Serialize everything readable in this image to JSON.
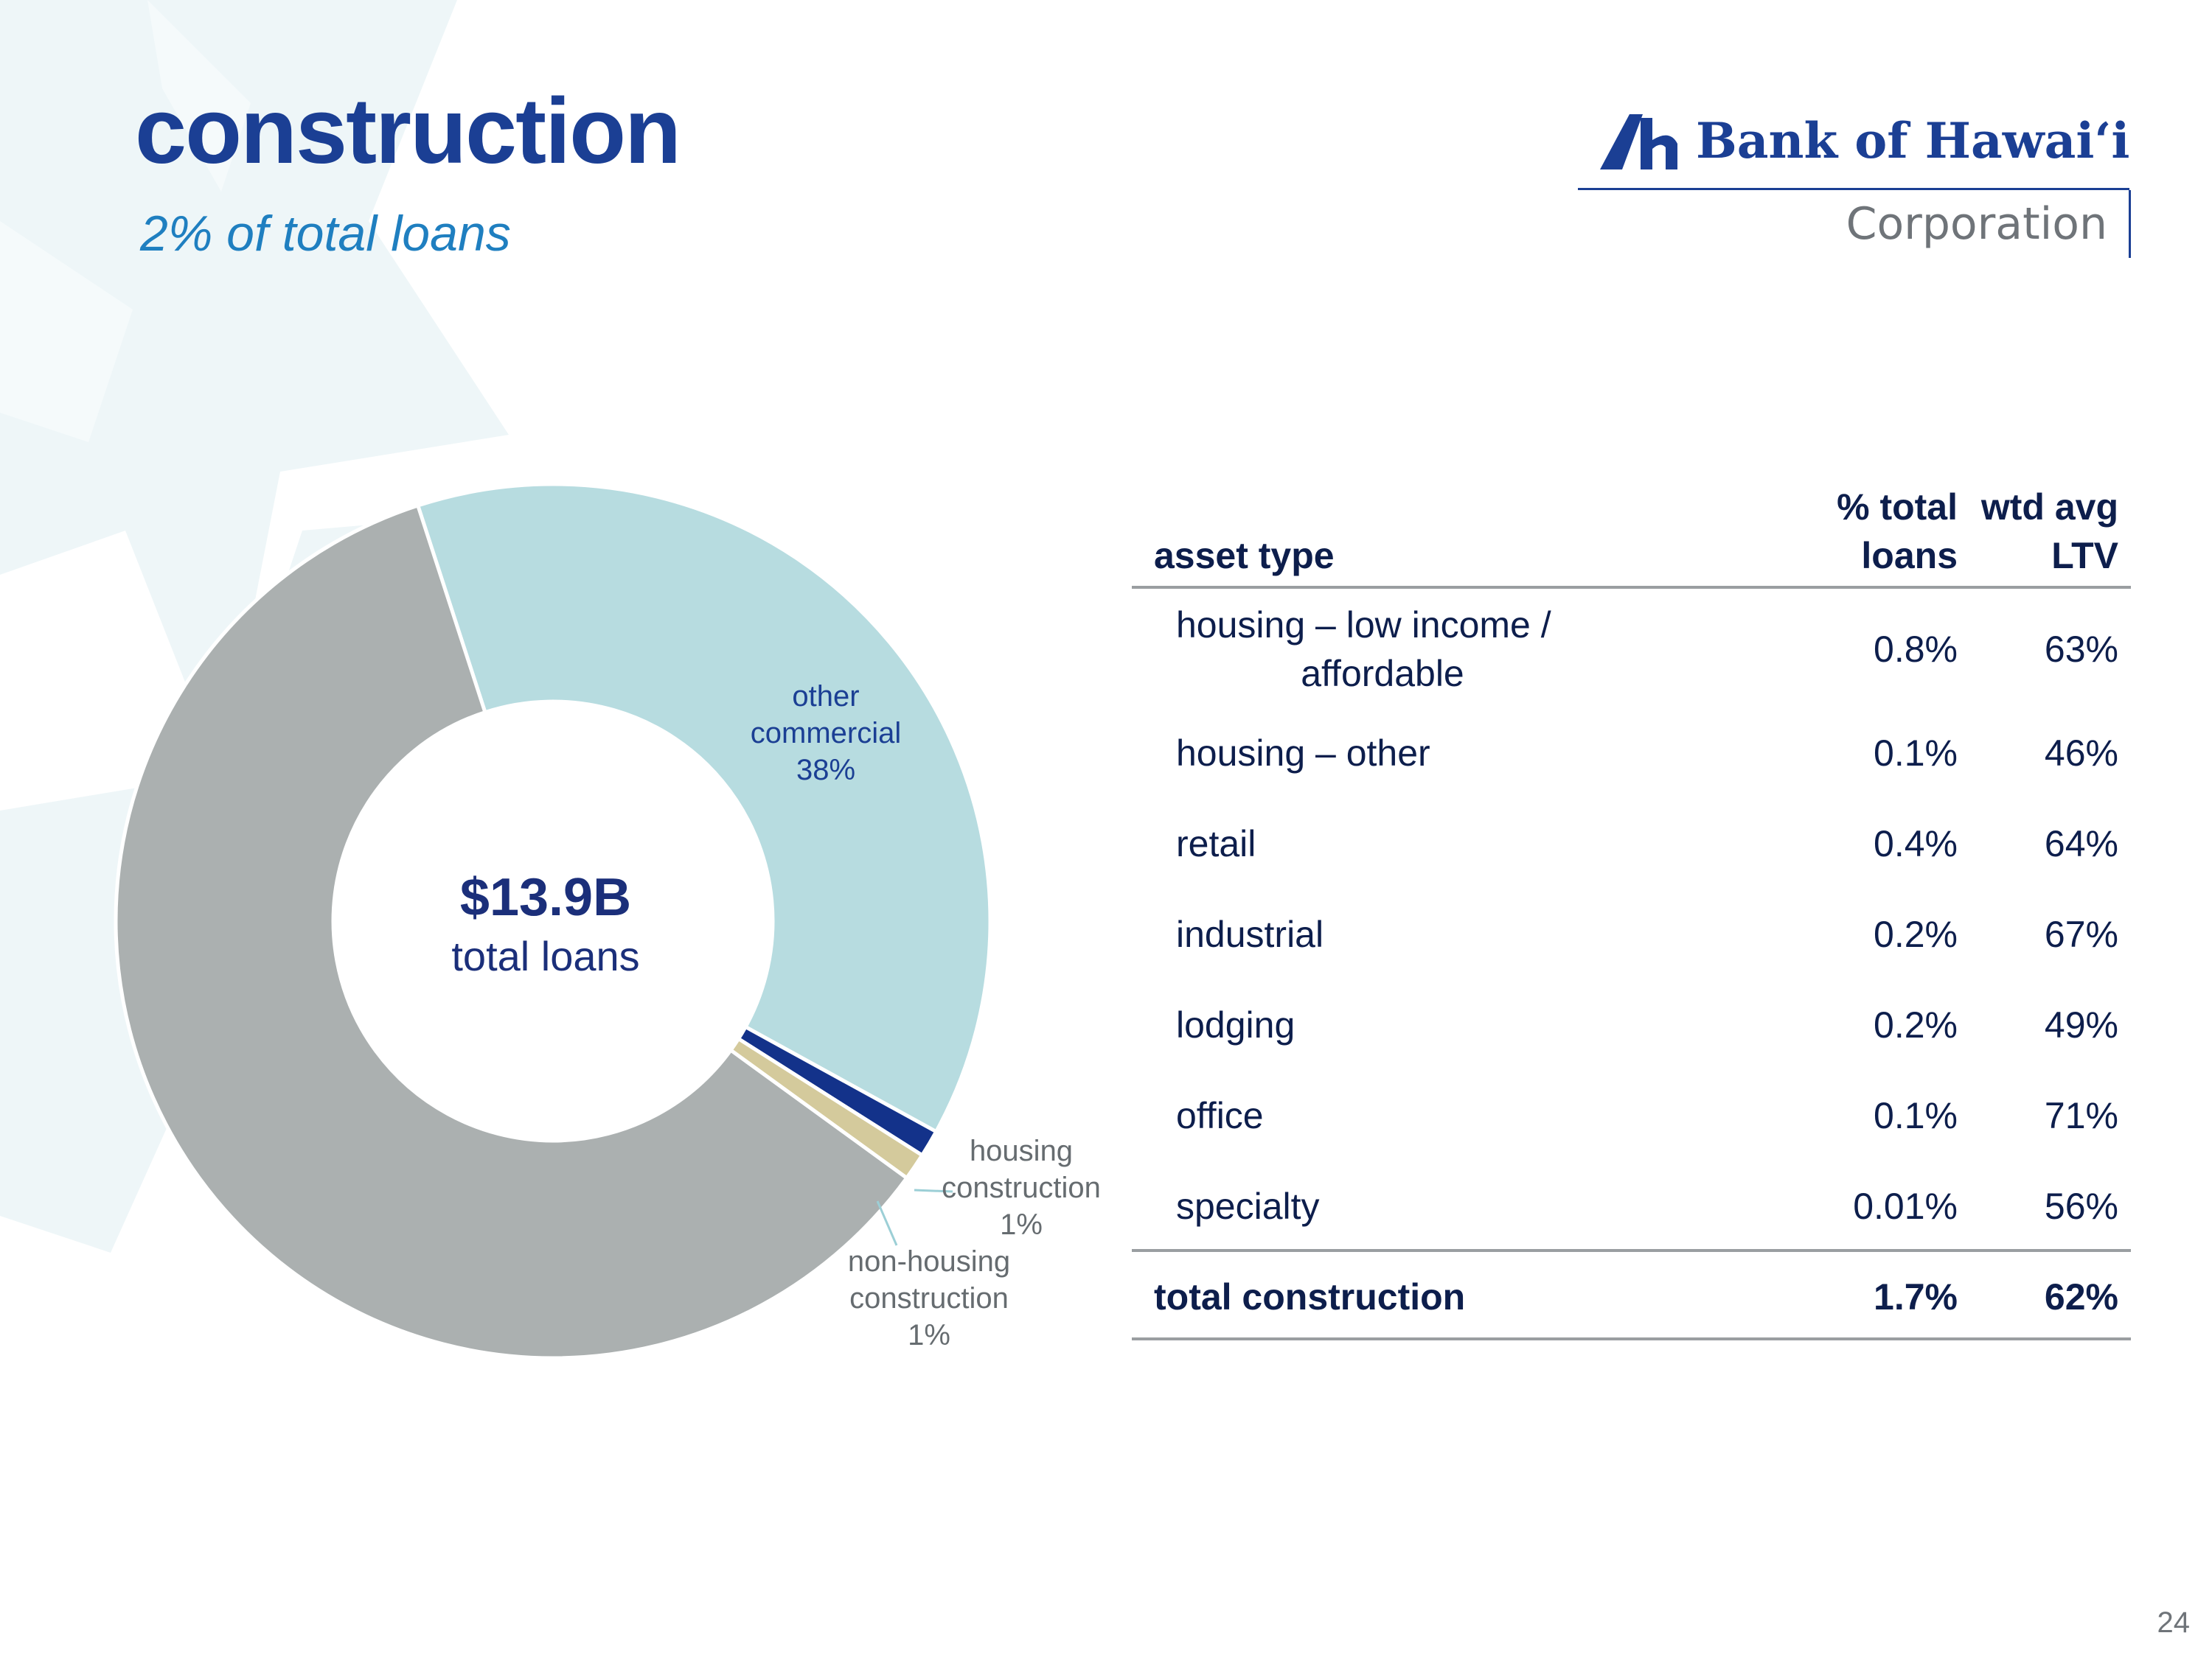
{
  "slide": {
    "title": "construction",
    "subtitle": "2% of total loans",
    "page_number": "24"
  },
  "logo": {
    "name": "Bank of Hawai‘i",
    "sub": "Corporation",
    "colors": {
      "primary": "#1b3f94",
      "secondary": "#6f7479"
    }
  },
  "chart_data": {
    "type": "pie",
    "center_value": "$13.9B",
    "center_caption": "total loans",
    "slices": [
      {
        "label": "other commercial",
        "pct_label": "38%",
        "value": 38,
        "color": "#b7dce0"
      },
      {
        "label": "housing construction",
        "pct_label": "1%",
        "value": 1,
        "color": "#13328a"
      },
      {
        "label": "non-housing construction",
        "pct_label": "1%",
        "value": 1,
        "color": "#d4ca9c"
      },
      {
        "label": "",
        "pct_label": "",
        "value": 60,
        "color": "#abb0b0"
      }
    ]
  },
  "labels": {
    "other_commercial": [
      "other",
      "commercial",
      "38%"
    ],
    "housing_construction": [
      "housing",
      "construction",
      "1%"
    ],
    "non_housing_construction": [
      "non-housing",
      "construction",
      "1%"
    ]
  },
  "table": {
    "headers": {
      "asset_type": "asset type",
      "pct_total_loans": [
        "% total",
        "loans"
      ],
      "wtd_avg_ltv": [
        "wtd avg",
        "LTV"
      ]
    },
    "rows": [
      {
        "type": [
          "housing – low income /",
          "affordable"
        ],
        "pct": "0.8%",
        "ltv": "63%"
      },
      {
        "type": [
          "housing – other"
        ],
        "pct": "0.1%",
        "ltv": "46%"
      },
      {
        "type": [
          "retail"
        ],
        "pct": "0.4%",
        "ltv": "64%"
      },
      {
        "type": [
          "industrial"
        ],
        "pct": "0.2%",
        "ltv": "67%"
      },
      {
        "type": [
          "lodging"
        ],
        "pct": "0.2%",
        "ltv": "49%"
      },
      {
        "type": [
          "office"
        ],
        "pct": "0.1%",
        "ltv": "71%"
      },
      {
        "type": [
          "specialty"
        ],
        "pct": "0.01%",
        "ltv": "56%"
      }
    ],
    "total": {
      "type": "total construction",
      "pct": "1.7%",
      "ltv": "62%"
    }
  }
}
